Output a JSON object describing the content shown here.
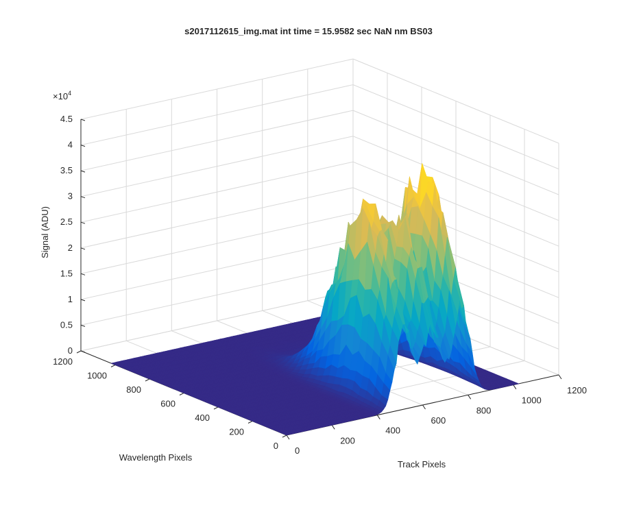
{
  "chart_data": {
    "type": "surface",
    "title": "s2017112615_img.mat int time = 15.9582 sec  NaN nm BS03",
    "xlabel": "Track Pixels",
    "ylabel": "Wavelength Pixels",
    "zlabel": "Signal (ADU)",
    "z_exponent_label": "×10",
    "z_exponent_power": "4",
    "xlim": [
      0,
      1200
    ],
    "ylim": [
      0,
      1200
    ],
    "zlim": [
      0,
      45000
    ],
    "x_ticks": [
      0,
      200,
      400,
      600,
      800,
      1000,
      1200
    ],
    "x_tick_labels": [
      "0",
      "200",
      "400",
      "600",
      "800",
      "1000",
      "1200"
    ],
    "y_ticks": [
      0,
      200,
      400,
      600,
      800,
      1000,
      1200
    ],
    "y_tick_labels": [
      "0",
      "200",
      "400",
      "600",
      "800",
      "1000",
      "1200"
    ],
    "z_ticks": [
      0,
      5000,
      10000,
      15000,
      20000,
      25000,
      30000,
      35000,
      40000,
      45000
    ],
    "z_tick_labels": [
      "0",
      "0.5",
      "1",
      "1.5",
      "2",
      "2.5",
      "3",
      "3.5",
      "4",
      "4.5"
    ],
    "grid": true,
    "colormap": "parula",
    "colormap_stops": [
      "#352a87",
      "#0363e1",
      "#1485d4",
      "#06a7c6",
      "#38b99e",
      "#92bf73",
      "#d9ba56",
      "#fcce2e",
      "#f9fb0e"
    ],
    "surface_data_extent": {
      "x": [
        0,
        1024
      ],
      "y": [
        0,
        1024
      ]
    },
    "peaks": [
      {
        "x_center": 520,
        "x_sigma": 38,
        "y_center": 220,
        "y_sigma": 170,
        "amplitude": 36000
      },
      {
        "x_center": 640,
        "x_sigma": 38,
        "y_center": 220,
        "y_sigma": 170,
        "amplitude": 34000
      },
      {
        "x_center": 770,
        "x_sigma": 38,
        "y_center": 220,
        "y_sigma": 170,
        "amplitude": 40000
      }
    ]
  }
}
